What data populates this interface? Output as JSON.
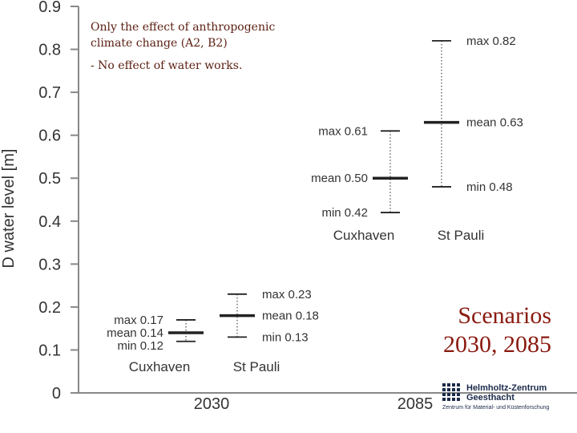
{
  "chart_data": {
    "type": "error-bar",
    "ylabel": "D water level  [m]",
    "ylim": [
      0,
      0.9
    ],
    "yticks": [
      "0",
      "0.1",
      "0.2",
      "0.3",
      "0.4",
      "0.5",
      "0.6",
      "0.7",
      "0.8",
      "0.9"
    ],
    "categories": [
      "2030",
      "2085"
    ],
    "groups": [
      {
        "year": "2030",
        "stations": [
          {
            "name": "Cuxhaven",
            "min": 0.12,
            "mean": 0.14,
            "max": 0.17,
            "min_label": "min 0.12",
            "mean_label": "mean 0.14",
            "max_label": "max 0.17"
          },
          {
            "name": "St Pauli",
            "min": 0.13,
            "mean": 0.18,
            "max": 0.23,
            "min_label": "min 0.13",
            "mean_label": "mean 0.18",
            "max_label": "max 0.23"
          }
        ]
      },
      {
        "year": "2085",
        "stations": [
          {
            "name": "Cuxhaven",
            "min": 0.42,
            "mean": 0.5,
            "max": 0.61,
            "min_label": "min 0.42",
            "mean_label": "mean 0.50",
            "max_label": "max 0.61"
          },
          {
            "name": "St Pauli",
            "min": 0.48,
            "mean": 0.63,
            "max": 0.82,
            "min_label": "min 0.48",
            "mean_label": "mean 0.63",
            "max_label": "max 0.82"
          }
        ]
      }
    ],
    "grid": false
  },
  "annotations": {
    "note_line1": "Only the effect of anthropogenic",
    "note_line2": "climate change (A2, B2)",
    "note_line3": "- No effect of water works.",
    "scenarios_line1": "Scenarios",
    "scenarios_line2": "2030, 2085"
  },
  "logo": {
    "title_line1": "Helmholtz-Zentrum",
    "title_line2": "Geesthacht",
    "subtitle": "Zentrum für Material- und Küstenforschung"
  },
  "colors": {
    "axis": "#888888",
    "bar": "#222222",
    "dots": "#555555",
    "text": "#333333",
    "note": "#5a1e10",
    "scenarios": "#8a1a10",
    "logo": "#1a2a4a"
  }
}
